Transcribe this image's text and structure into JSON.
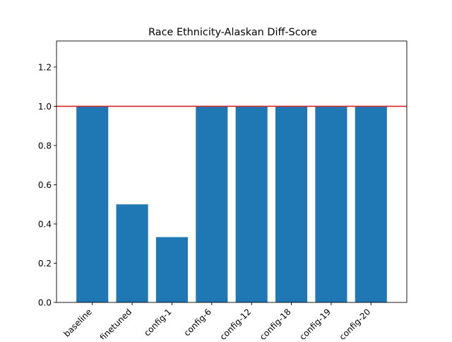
{
  "chart_data": {
    "type": "bar",
    "title": "Race Ethnicity-Alaskan Diff-Score",
    "xlabel": "",
    "ylabel": "",
    "categories": [
      "baseline",
      "finetuned",
      "config-1",
      "config-6",
      "config-12",
      "config-18",
      "config-19",
      "config-20"
    ],
    "values": [
      1.0,
      0.5,
      0.333,
      1.0,
      1.0,
      1.0,
      1.0,
      1.0
    ],
    "ylim": [
      0,
      1.333
    ],
    "yticks": [
      "0.0",
      "0.2",
      "0.4",
      "0.6",
      "0.8",
      "1.0",
      "1.2"
    ],
    "reference_line": 1.0,
    "bar_color": "#1f77b4",
    "reference_line_color": "#d62728",
    "grid": false,
    "legend": "none"
  }
}
